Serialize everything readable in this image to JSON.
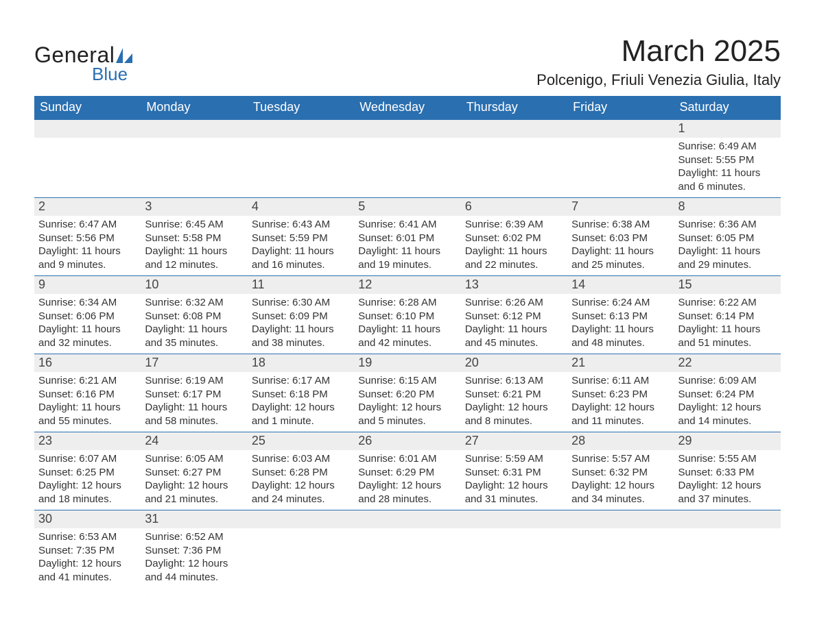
{
  "brand": {
    "word1": "General",
    "word2": "Blue",
    "text_color_primary": "#222222",
    "text_color_accent": "#2a6fb0",
    "sail_color": "#2a6fb0"
  },
  "title": {
    "month": "March 2025",
    "location": "Polcenigo, Friuli Venezia Giulia, Italy",
    "month_fontsize": 44,
    "location_fontsize": 22,
    "text_color": "#222222"
  },
  "calendar": {
    "type": "table",
    "header_bg": "#2a6fb0",
    "header_text_color": "#ffffff",
    "daynum_bg": "#eeeeee",
    "row_divider_color": "#2a6fb0",
    "body_text_color": "#333333",
    "day_headers": [
      "Sunday",
      "Monday",
      "Tuesday",
      "Wednesday",
      "Thursday",
      "Friday",
      "Saturday"
    ],
    "first_weekday_index": 6,
    "days": [
      {
        "n": "1",
        "sunrise": "6:49 AM",
        "sunset": "5:55 PM",
        "daylight": "11 hours and 6 minutes."
      },
      {
        "n": "2",
        "sunrise": "6:47 AM",
        "sunset": "5:56 PM",
        "daylight": "11 hours and 9 minutes."
      },
      {
        "n": "3",
        "sunrise": "6:45 AM",
        "sunset": "5:58 PM",
        "daylight": "11 hours and 12 minutes."
      },
      {
        "n": "4",
        "sunrise": "6:43 AM",
        "sunset": "5:59 PM",
        "daylight": "11 hours and 16 minutes."
      },
      {
        "n": "5",
        "sunrise": "6:41 AM",
        "sunset": "6:01 PM",
        "daylight": "11 hours and 19 minutes."
      },
      {
        "n": "6",
        "sunrise": "6:39 AM",
        "sunset": "6:02 PM",
        "daylight": "11 hours and 22 minutes."
      },
      {
        "n": "7",
        "sunrise": "6:38 AM",
        "sunset": "6:03 PM",
        "daylight": "11 hours and 25 minutes."
      },
      {
        "n": "8",
        "sunrise": "6:36 AM",
        "sunset": "6:05 PM",
        "daylight": "11 hours and 29 minutes."
      },
      {
        "n": "9",
        "sunrise": "6:34 AM",
        "sunset": "6:06 PM",
        "daylight": "11 hours and 32 minutes."
      },
      {
        "n": "10",
        "sunrise": "6:32 AM",
        "sunset": "6:08 PM",
        "daylight": "11 hours and 35 minutes."
      },
      {
        "n": "11",
        "sunrise": "6:30 AM",
        "sunset": "6:09 PM",
        "daylight": "11 hours and 38 minutes."
      },
      {
        "n": "12",
        "sunrise": "6:28 AM",
        "sunset": "6:10 PM",
        "daylight": "11 hours and 42 minutes."
      },
      {
        "n": "13",
        "sunrise": "6:26 AM",
        "sunset": "6:12 PM",
        "daylight": "11 hours and 45 minutes."
      },
      {
        "n": "14",
        "sunrise": "6:24 AM",
        "sunset": "6:13 PM",
        "daylight": "11 hours and 48 minutes."
      },
      {
        "n": "15",
        "sunrise": "6:22 AM",
        "sunset": "6:14 PM",
        "daylight": "11 hours and 51 minutes."
      },
      {
        "n": "16",
        "sunrise": "6:21 AM",
        "sunset": "6:16 PM",
        "daylight": "11 hours and 55 minutes."
      },
      {
        "n": "17",
        "sunrise": "6:19 AM",
        "sunset": "6:17 PM",
        "daylight": "11 hours and 58 minutes."
      },
      {
        "n": "18",
        "sunrise": "6:17 AM",
        "sunset": "6:18 PM",
        "daylight": "12 hours and 1 minute."
      },
      {
        "n": "19",
        "sunrise": "6:15 AM",
        "sunset": "6:20 PM",
        "daylight": "12 hours and 5 minutes."
      },
      {
        "n": "20",
        "sunrise": "6:13 AM",
        "sunset": "6:21 PM",
        "daylight": "12 hours and 8 minutes."
      },
      {
        "n": "21",
        "sunrise": "6:11 AM",
        "sunset": "6:23 PM",
        "daylight": "12 hours and 11 minutes."
      },
      {
        "n": "22",
        "sunrise": "6:09 AM",
        "sunset": "6:24 PM",
        "daylight": "12 hours and 14 minutes."
      },
      {
        "n": "23",
        "sunrise": "6:07 AM",
        "sunset": "6:25 PM",
        "daylight": "12 hours and 18 minutes."
      },
      {
        "n": "24",
        "sunrise": "6:05 AM",
        "sunset": "6:27 PM",
        "daylight": "12 hours and 21 minutes."
      },
      {
        "n": "25",
        "sunrise": "6:03 AM",
        "sunset": "6:28 PM",
        "daylight": "12 hours and 24 minutes."
      },
      {
        "n": "26",
        "sunrise": "6:01 AM",
        "sunset": "6:29 PM",
        "daylight": "12 hours and 28 minutes."
      },
      {
        "n": "27",
        "sunrise": "5:59 AM",
        "sunset": "6:31 PM",
        "daylight": "12 hours and 31 minutes."
      },
      {
        "n": "28",
        "sunrise": "5:57 AM",
        "sunset": "6:32 PM",
        "daylight": "12 hours and 34 minutes."
      },
      {
        "n": "29",
        "sunrise": "5:55 AM",
        "sunset": "6:33 PM",
        "daylight": "12 hours and 37 minutes."
      },
      {
        "n": "30",
        "sunrise": "6:53 AM",
        "sunset": "7:35 PM",
        "daylight": "12 hours and 41 minutes."
      },
      {
        "n": "31",
        "sunrise": "6:52 AM",
        "sunset": "7:36 PM",
        "daylight": "12 hours and 44 minutes."
      }
    ],
    "labels": {
      "sunrise_prefix": "Sunrise: ",
      "sunset_prefix": "Sunset: ",
      "daylight_prefix": "Daylight: "
    }
  }
}
